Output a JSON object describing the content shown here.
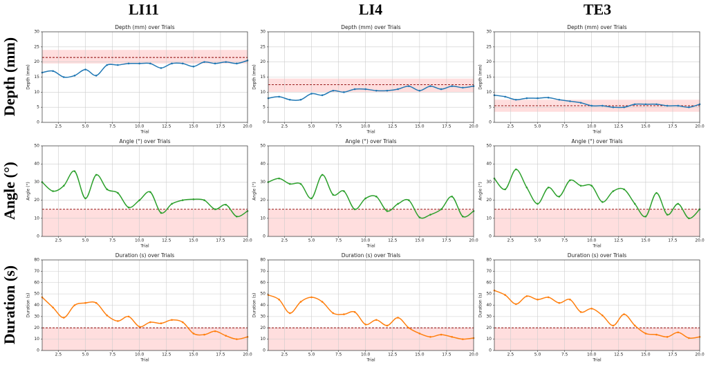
{
  "column_headers": [
    "LI11",
    "LI4",
    "TE3"
  ],
  "row_labels": [
    "Depth (mm)",
    "Angle (°)",
    "Duration (s)"
  ],
  "chart_data": [
    {
      "type": "line",
      "title": "Depth (mm) over Trials",
      "xlabel": "Trial",
      "ylabel": "Depth (mm)",
      "x": [
        1,
        2,
        3,
        4,
        5,
        6,
        7,
        8,
        9,
        10,
        11,
        12,
        13,
        14,
        15,
        16,
        17,
        18,
        19,
        20
      ],
      "series": [
        {
          "color": "#1f77b4",
          "values": [
            16.5,
            17,
            15,
            15.5,
            17.5,
            15.5,
            19,
            19,
            19.5,
            19.5,
            19.5,
            18,
            19.5,
            19.5,
            18.5,
            20,
            19.5,
            20,
            19.5,
            20.5
          ]
        }
      ],
      "reference_line": 21.5,
      "band": [
        19.5,
        24
      ],
      "xlim": [
        1,
        20
      ],
      "xticks": [
        {
          "value": 2.5,
          "label": "2.5"
        },
        {
          "value": 5,
          "label": "5.0"
        },
        {
          "value": 7.5,
          "label": "7.5"
        },
        {
          "value": 10,
          "label": "10.0"
        },
        {
          "value": 12.5,
          "label": "12.5"
        },
        {
          "value": 15,
          "label": "15.0"
        },
        {
          "value": 17.5,
          "label": "17.5"
        },
        {
          "value": 20,
          "label": "20.0"
        }
      ],
      "ylim": [
        0,
        30
      ],
      "yticks": [
        0,
        5,
        10,
        15,
        20,
        25,
        30
      ],
      "grid": true
    },
    {
      "type": "line",
      "title": "Depth (mm) over Trials",
      "xlabel": "Trial",
      "ylabel": "Depth (mm)",
      "x": [
        1,
        2,
        3,
        4,
        5,
        6,
        7,
        8,
        9,
        10,
        11,
        12,
        13,
        14,
        15,
        16,
        17,
        18,
        19,
        20
      ],
      "series": [
        {
          "color": "#1f77b4",
          "values": [
            8,
            8.5,
            7.5,
            7.5,
            9.5,
            9,
            10.5,
            10,
            11,
            11,
            10.5,
            10.5,
            11,
            12,
            10.5,
            12,
            11,
            12,
            11.5,
            12
          ]
        }
      ],
      "reference_line": 12.5,
      "band": [
        10,
        14.5
      ],
      "xlim": [
        1,
        20
      ],
      "xticks": [
        {
          "value": 2.5,
          "label": "2.5"
        },
        {
          "value": 5,
          "label": "5.0"
        },
        {
          "value": 7.5,
          "label": "7.5"
        },
        {
          "value": 10,
          "label": "10.0"
        },
        {
          "value": 12.5,
          "label": "12.5"
        },
        {
          "value": 15,
          "label": "15.0"
        },
        {
          "value": 17.5,
          "label": "17.5"
        },
        {
          "value": 20,
          "label": "20.0"
        }
      ],
      "ylim": [
        0,
        30
      ],
      "yticks": [
        0,
        5,
        10,
        15,
        20,
        25,
        30
      ],
      "grid": true
    },
    {
      "type": "line",
      "title": "Depth (mm) over Trials",
      "xlabel": "Trial",
      "ylabel": "Depth (mm)",
      "x": [
        1,
        2,
        3,
        4,
        5,
        6,
        7,
        8,
        9,
        10,
        11,
        12,
        13,
        14,
        15,
        16,
        17,
        18,
        19,
        20
      ],
      "series": [
        {
          "color": "#1f77b4",
          "values": [
            9,
            8.5,
            7.5,
            8,
            8,
            8.2,
            7.5,
            7,
            6.5,
            5.5,
            5.5,
            5,
            5,
            6,
            6,
            6,
            5.5,
            5.5,
            5,
            6
          ]
        }
      ],
      "reference_line": 5.5,
      "band": [
        3.5,
        7.5
      ],
      "xlim": [
        1,
        20
      ],
      "xticks": [
        {
          "value": 2.5,
          "label": "2.5"
        },
        {
          "value": 5,
          "label": "5.0"
        },
        {
          "value": 7.5,
          "label": "7.5"
        },
        {
          "value": 10,
          "label": "10.0"
        },
        {
          "value": 12.5,
          "label": "12.5"
        },
        {
          "value": 15,
          "label": "15.0"
        },
        {
          "value": 17.5,
          "label": "17.5"
        },
        {
          "value": 20,
          "label": "20.0"
        }
      ],
      "ylim": [
        0,
        30
      ],
      "yticks": [
        0,
        5,
        10,
        15,
        20,
        25,
        30
      ],
      "grid": true
    },
    {
      "type": "line",
      "title": "Angle (°) over Trials",
      "xlabel": "Trial",
      "ylabel": "Angle (°)",
      "x": [
        1,
        2,
        3,
        4,
        5,
        6,
        7,
        8,
        9,
        10,
        11,
        12,
        13,
        14,
        15,
        16,
        17,
        18,
        19,
        20
      ],
      "series": [
        {
          "color": "#2ca02c",
          "values": [
            30,
            25,
            28,
            36,
            21,
            34,
            26,
            24,
            16,
            20,
            24.5,
            13,
            18,
            20,
            20.5,
            20,
            15,
            17.5,
            11,
            14
          ]
        }
      ],
      "reference_line": 15,
      "band": [
        0,
        15
      ],
      "xlim": [
        1,
        20
      ],
      "xticks": [
        {
          "value": 2.5,
          "label": "2.5"
        },
        {
          "value": 5,
          "label": "5.0"
        },
        {
          "value": 7.5,
          "label": "7.5"
        },
        {
          "value": 10,
          "label": "10.0"
        },
        {
          "value": 12.5,
          "label": "12.5"
        },
        {
          "value": 15,
          "label": "15.0"
        },
        {
          "value": 17.5,
          "label": "17.5"
        },
        {
          "value": 20,
          "label": "20.0"
        }
      ],
      "ylim": [
        0,
        50
      ],
      "yticks": [
        0,
        10,
        20,
        30,
        40,
        50
      ],
      "grid": true
    },
    {
      "type": "line",
      "title": "Angle (°) over Trials",
      "xlabel": "Trial",
      "ylabel": "Angle (°)",
      "x": [
        1,
        2,
        3,
        4,
        5,
        6,
        7,
        8,
        9,
        10,
        11,
        12,
        13,
        14,
        15,
        16,
        17,
        18,
        19,
        20
      ],
      "series": [
        {
          "color": "#2ca02c",
          "values": [
            30,
            32,
            29,
            29,
            21,
            34,
            23,
            25,
            15,
            21,
            22,
            14,
            18,
            20,
            10.5,
            12,
            15,
            22,
            11,
            14
          ]
        }
      ],
      "reference_line": 15,
      "band": [
        0,
        15
      ],
      "xlim": [
        1,
        20
      ],
      "xticks": [
        {
          "value": 2.5,
          "label": "2.5"
        },
        {
          "value": 5,
          "label": "5.0"
        },
        {
          "value": 7.5,
          "label": "7.5"
        },
        {
          "value": 10,
          "label": "10.0"
        },
        {
          "value": 12.5,
          "label": "12.5"
        },
        {
          "value": 15,
          "label": "15.0"
        },
        {
          "value": 17.5,
          "label": "17.5"
        },
        {
          "value": 20,
          "label": "20.0"
        }
      ],
      "ylim": [
        0,
        50
      ],
      "yticks": [
        0,
        10,
        20,
        30,
        40,
        50
      ],
      "grid": true
    },
    {
      "type": "line",
      "title": "Angle (°) over Trials",
      "xlabel": "Trial",
      "ylabel": "Angle (°)",
      "x": [
        1,
        2,
        3,
        4,
        5,
        6,
        7,
        8,
        9,
        10,
        11,
        12,
        13,
        14,
        15,
        16,
        17,
        18,
        19,
        20
      ],
      "series": [
        {
          "color": "#2ca02c",
          "values": [
            32,
            26,
            37,
            27,
            18,
            27,
            22,
            31,
            28,
            28,
            19,
            25,
            26,
            18,
            11,
            24,
            12,
            18,
            10,
            15
          ]
        }
      ],
      "reference_line": 15,
      "band": [
        0,
        15
      ],
      "xlim": [
        1,
        20
      ],
      "xticks": [
        {
          "value": 2.5,
          "label": "2.5"
        },
        {
          "value": 5,
          "label": "5.0"
        },
        {
          "value": 7.5,
          "label": "7.5"
        },
        {
          "value": 10,
          "label": "10.0"
        },
        {
          "value": 12.5,
          "label": "12.5"
        },
        {
          "value": 15,
          "label": "15.0"
        },
        {
          "value": 17.5,
          "label": "17.5"
        },
        {
          "value": 20,
          "label": "20.0"
        }
      ],
      "ylim": [
        0,
        50
      ],
      "yticks": [
        0,
        10,
        20,
        30,
        40,
        50
      ],
      "grid": true
    },
    {
      "type": "line",
      "title": "Duration (s) over Trials",
      "xlabel": "Trial",
      "ylabel": "Duration (s)",
      "x": [
        1,
        2,
        3,
        4,
        5,
        6,
        7,
        8,
        9,
        10,
        11,
        12,
        13,
        14,
        15,
        16,
        17,
        18,
        19,
        20
      ],
      "series": [
        {
          "color": "#ff7f0e",
          "values": [
            47,
            38,
            29,
            40,
            42,
            42,
            31,
            26,
            30,
            21,
            25,
            24,
            27,
            25,
            15,
            14,
            17,
            13,
            10,
            12
          ]
        }
      ],
      "reference_line": 20,
      "band": [
        0,
        20
      ],
      "xlim": [
        1,
        20
      ],
      "xticks": [
        {
          "value": 2.5,
          "label": "2.5"
        },
        {
          "value": 5,
          "label": "5.0"
        },
        {
          "value": 7.5,
          "label": "7.5"
        },
        {
          "value": 10,
          "label": "10.0"
        },
        {
          "value": 12.5,
          "label": "12.5"
        },
        {
          "value": 15,
          "label": "15.0"
        },
        {
          "value": 17.5,
          "label": "17.5"
        },
        {
          "value": 20,
          "label": "20.0"
        }
      ],
      "ylim": [
        0,
        80
      ],
      "yticks": [
        0,
        10,
        20,
        30,
        40,
        50,
        60,
        70,
        80
      ],
      "grid": true
    },
    {
      "type": "line",
      "title": "Duration (s) over Trials",
      "xlabel": "Trial",
      "ylabel": "Duration (s)",
      "x": [
        1,
        2,
        3,
        4,
        5,
        6,
        7,
        8,
        9,
        10,
        11,
        12,
        13,
        14,
        15,
        16,
        17,
        18,
        19,
        20
      ],
      "series": [
        {
          "color": "#ff7f0e",
          "values": [
            49,
            45,
            33,
            43,
            47,
            43,
            33,
            32,
            34,
            23,
            27,
            22,
            29,
            20,
            15,
            12,
            14,
            12,
            10,
            11
          ]
        }
      ],
      "reference_line": 20,
      "band": [
        0,
        20
      ],
      "xlim": [
        1,
        20
      ],
      "xticks": [
        {
          "value": 2.5,
          "label": "2.5"
        },
        {
          "value": 5,
          "label": "5.0"
        },
        {
          "value": 7.5,
          "label": "7.5"
        },
        {
          "value": 10,
          "label": "10.0"
        },
        {
          "value": 12.5,
          "label": "12.5"
        },
        {
          "value": 15,
          "label": "15.0"
        },
        {
          "value": 17.5,
          "label": "17.5"
        },
        {
          "value": 20,
          "label": "20.0"
        }
      ],
      "ylim": [
        0,
        80
      ],
      "yticks": [
        0,
        10,
        20,
        30,
        40,
        50,
        60,
        70,
        80
      ],
      "grid": true
    },
    {
      "type": "line",
      "title": "Duration (s) over Trials",
      "xlabel": "Trial",
      "ylabel": "Duration (s)",
      "x": [
        1,
        2,
        3,
        4,
        5,
        6,
        7,
        8,
        9,
        10,
        11,
        12,
        13,
        14,
        15,
        16,
        17,
        18,
        19,
        20
      ],
      "series": [
        {
          "color": "#ff7f0e",
          "values": [
            53,
            49,
            41,
            48,
            45,
            47,
            42,
            45,
            34,
            37,
            31,
            22,
            32,
            22,
            15,
            14,
            12,
            16,
            11,
            12
          ]
        }
      ],
      "reference_line": 20,
      "band": [
        0,
        20
      ],
      "xlim": [
        1,
        20
      ],
      "xticks": [
        {
          "value": 2.5,
          "label": "2.5"
        },
        {
          "value": 5,
          "label": "5.0"
        },
        {
          "value": 7.5,
          "label": "7.5"
        },
        {
          "value": 10,
          "label": "10.0"
        },
        {
          "value": 12.5,
          "label": "12.5"
        },
        {
          "value": 15,
          "label": "15.0"
        },
        {
          "value": 17.5,
          "label": "17.5"
        },
        {
          "value": 20,
          "label": "20.0"
        }
      ],
      "ylim": [
        0,
        80
      ],
      "yticks": [
        0,
        10,
        20,
        30,
        40,
        50,
        60,
        70,
        80
      ],
      "grid": true
    }
  ]
}
